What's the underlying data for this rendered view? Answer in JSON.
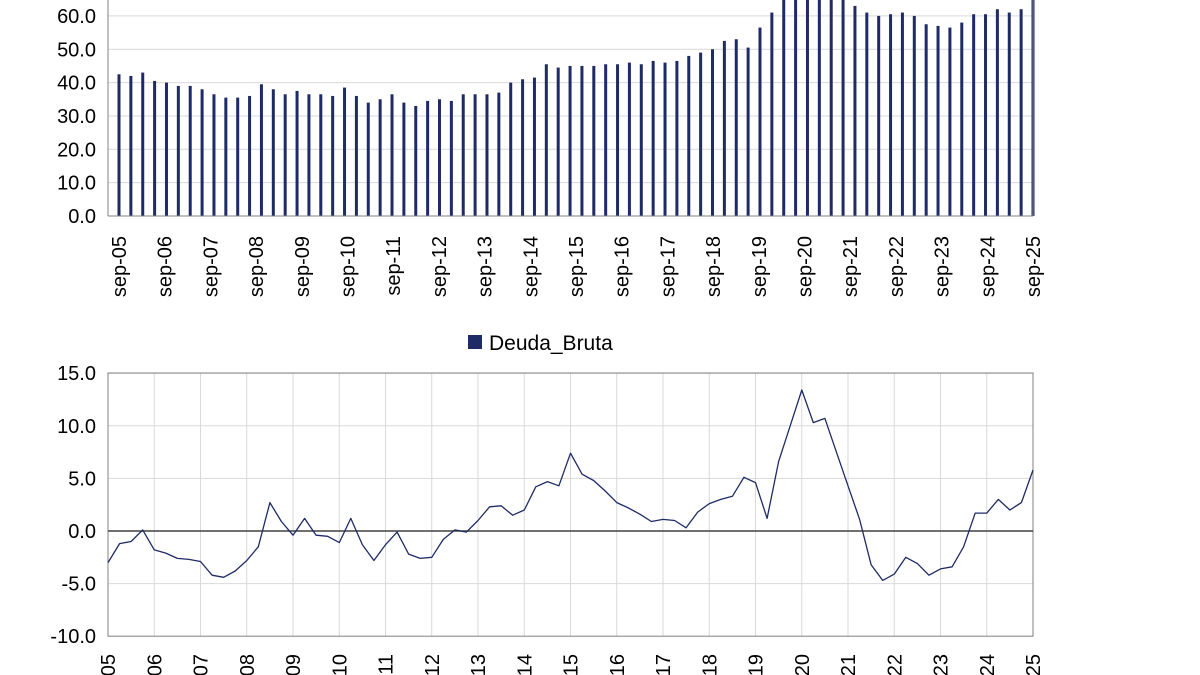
{
  "colors": {
    "series": "#1f2b66",
    "grid": "#d9d9d9",
    "axis": "#808080",
    "zero_line": "#404040"
  },
  "chart_data": [
    {
      "type": "bar",
      "ylim": [
        0,
        67
      ],
      "yticks": [
        "0.0",
        "10.0",
        "20.0",
        "30.0",
        "40.0",
        "50.0",
        "60.0"
      ],
      "ytick_values": [
        0,
        10,
        20,
        30,
        40,
        50,
        60
      ],
      "xtick_labels": [
        "sep-05",
        "sep-06",
        "sep-07",
        "sep-08",
        "sep-09",
        "sep-10",
        "sep-11",
        "sep-12",
        "sep-13",
        "sep-14",
        "sep-15",
        "sep-16",
        "sep-17",
        "sep-18",
        "sep-19",
        "sep-20",
        "sep-21",
        "sep-22",
        "sep-23",
        "sep-24",
        "sep-25"
      ],
      "grid": true,
      "series": [
        {
          "values": [
            42.5,
            42.0,
            43.0,
            40.5,
            40.0,
            39.0,
            39.0,
            38.0,
            36.5,
            35.5,
            35.5,
            36.0,
            39.5,
            38.0,
            36.5,
            37.5,
            36.5,
            36.5,
            36.0,
            38.5,
            36.0,
            34.0,
            35.0,
            36.5,
            34.0,
            33.0,
            34.5,
            35.0,
            34.5,
            36.5,
            36.5,
            36.5,
            37.0,
            40.0,
            41.0,
            41.5,
            45.5,
            44.5,
            45.0,
            45.0,
            45.0,
            45.5,
            45.5,
            46.0,
            45.5,
            46.5,
            46.0,
            46.5,
            48.0,
            49.0,
            50.0,
            52.5,
            53.0,
            50.5,
            56.5,
            61.0,
            67,
            67,
            67,
            67,
            67,
            65.5,
            63.0,
            61.0,
            60.0,
            60.5,
            61.0,
            60.0,
            57.5,
            57.0,
            56.5,
            58.0,
            60.5,
            60.5,
            62.0,
            61.0,
            62.0,
            67
          ]
        }
      ]
    },
    {
      "type": "line",
      "legend": "Deuda_Bruta",
      "legend_placement": "top-center",
      "ylim": [
        -10,
        15
      ],
      "yticks": [
        "-10.0",
        "-5.0",
        "0.0",
        "5.0",
        "10.0",
        "15.0"
      ],
      "ytick_values": [
        -10,
        -5,
        0,
        5,
        10,
        15
      ],
      "xtick_labels": [
        "05",
        "06",
        "07",
        "08",
        "09",
        "10",
        "11",
        "12",
        "13",
        "14",
        "15",
        "16",
        "17",
        "18",
        "19",
        "20",
        "21",
        "22",
        "23",
        "24",
        "25"
      ],
      "grid": true,
      "series": [
        {
          "name": "Deuda_Bruta",
          "values": [
            -3.0,
            -1.2,
            -1.0,
            0.1,
            -1.8,
            -2.1,
            -2.6,
            -2.7,
            -2.9,
            -4.2,
            -4.4,
            -3.8,
            -2.8,
            -1.5,
            2.7,
            0.9,
            -0.4,
            1.2,
            -0.4,
            -0.5,
            -1.1,
            1.2,
            -1.3,
            -2.8,
            -1.3,
            -0.1,
            -2.2,
            -2.6,
            -2.5,
            -0.8,
            0.1,
            -0.1,
            1.0,
            2.3,
            2.4,
            1.5,
            2.0,
            4.2,
            4.7,
            4.3,
            7.4,
            5.4,
            4.8,
            3.8,
            2.7,
            2.2,
            1.6,
            0.9,
            1.1,
            1.0,
            0.3,
            1.8,
            2.6,
            3.0,
            3.3,
            5.1,
            4.6,
            1.2,
            6.6,
            10.0,
            13.4,
            10.3,
            10.7,
            7.5,
            4.3,
            1.1,
            -3.2,
            -4.7,
            -4.1,
            -2.5,
            -3.1,
            -4.2,
            -3.6,
            -3.4,
            -1.5,
            1.7,
            1.7,
            3.0,
            2.0,
            2.7,
            5.8
          ]
        }
      ]
    }
  ]
}
